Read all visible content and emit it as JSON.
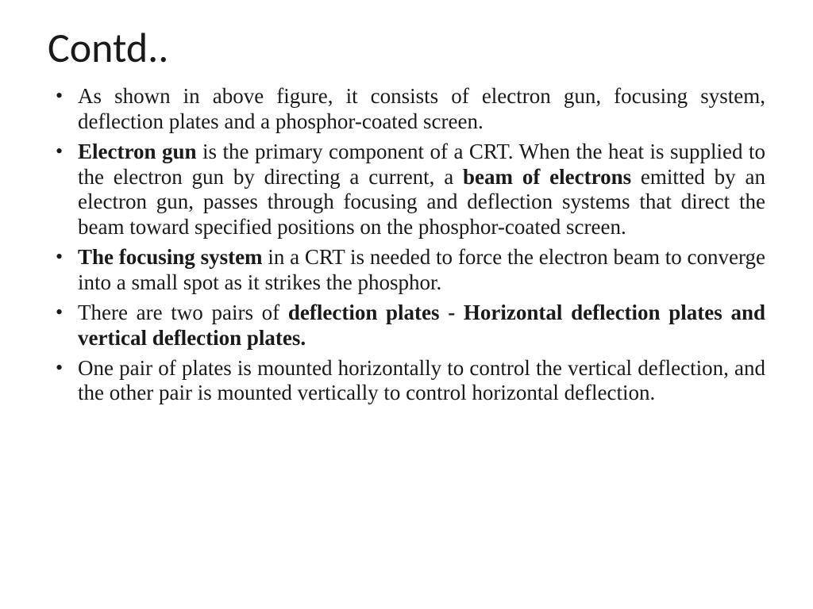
{
  "slide": {
    "title": "Contd..",
    "title_fontsize": 52,
    "title_font": "Calibri",
    "body_fontsize": 27,
    "body_font": "Times New Roman",
    "text_color": "#1a1a1a",
    "background_color": "#ffffff",
    "bullets": [
      {
        "segments": [
          {
            "text": "As shown in above figure, it consists of electron gun, focusing system, deflection plates and a phosphor-coated screen.",
            "bold": false
          }
        ]
      },
      {
        "segments": [
          {
            "text": "Electron gun",
            "bold": true
          },
          {
            "text": " is the primary component of a CRT. When the heat is supplied to the electron gun by directing a current, a ",
            "bold": false
          },
          {
            "text": "beam of electrons",
            "bold": true
          },
          {
            "text": " emitted by an electron gun, passes through focusing and deflection systems that direct the beam toward specified positions on the phosphor-coated screen.",
            "bold": false
          }
        ]
      },
      {
        "segments": [
          {
            "text": "The focusing system",
            "bold": true
          },
          {
            "text": " in a CRT is needed to force the electron beam to converge into a small spot as it strikes the phosphor.",
            "bold": false
          }
        ]
      },
      {
        "segments": [
          {
            "text": "There are two pairs of ",
            "bold": false
          },
          {
            "text": "deflection plates - Horizontal deflection plates and vertical deflection plates.",
            "bold": true
          }
        ]
      },
      {
        "segments": [
          {
            "text": "One pair of plates is mounted horizontally to control the vertical deflection, and the other pair is mounted vertically to control horizontal deflection.",
            "bold": false
          }
        ]
      }
    ]
  }
}
